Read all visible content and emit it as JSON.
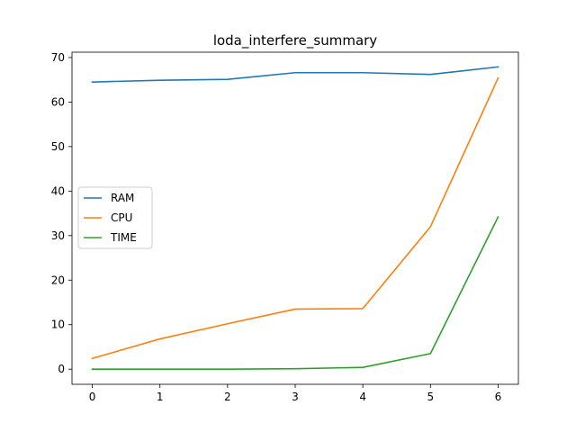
{
  "chart_data": {
    "type": "line",
    "title": "loda_interfere_summary",
    "xlabel": "",
    "ylabel": "",
    "x": [
      0,
      1,
      2,
      3,
      4,
      5,
      6
    ],
    "xticks": [
      0,
      1,
      2,
      3,
      4,
      5,
      6
    ],
    "yticks": [
      0,
      10,
      20,
      30,
      40,
      50,
      60,
      70
    ],
    "xlim": [
      -0.3,
      6.3
    ],
    "ylim": [
      -3.4,
      71.2
    ],
    "grid": false,
    "legend_position": "center-left",
    "series": [
      {
        "name": "RAM",
        "color": "#1f77b4",
        "values": [
          64.5,
          64.9,
          65.1,
          66.6,
          66.6,
          66.2,
          67.9
        ]
      },
      {
        "name": "CPU",
        "color": "#ff7f0e",
        "values": [
          2.4,
          6.8,
          10.2,
          13.5,
          13.6,
          32.0,
          65.4
        ]
      },
      {
        "name": "TIME",
        "color": "#2ca02c",
        "values": [
          0.0,
          0.0,
          0.0,
          0.1,
          0.4,
          3.5,
          34.2
        ]
      }
    ]
  }
}
